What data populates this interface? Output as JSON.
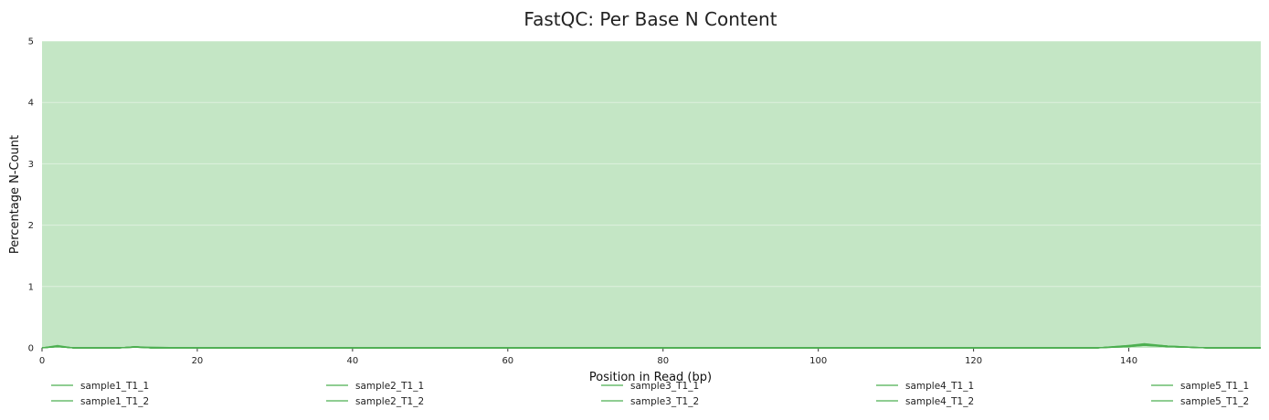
{
  "chart_data": {
    "type": "line",
    "title": "FastQC: Per Base N Content",
    "xlabel": "Position in Read (bp)",
    "ylabel": "Percentage N-Count",
    "xlim": [
      0,
      157
    ],
    "ylim": [
      0,
      5
    ],
    "xticks": [
      0,
      20,
      40,
      60,
      80,
      100,
      120,
      140
    ],
    "yticks": [
      0,
      1,
      2,
      3,
      4,
      5
    ],
    "background_band": {
      "from": 0,
      "to": 5,
      "color": "#c4e6c5"
    },
    "grid": true,
    "legend_position": "bottom",
    "line_color": "#4caf50",
    "series": [
      {
        "name": "sample1_T1_1",
        "x": [
          0,
          1,
          2,
          3,
          4,
          6,
          10,
          12,
          14,
          20,
          40,
          60,
          80,
          100,
          120,
          136,
          140,
          142,
          145,
          150,
          157
        ],
        "y": [
          0,
          0.02,
          0.04,
          0.02,
          0,
          0,
          0,
          0.02,
          0.01,
          0,
          0,
          0,
          0,
          0,
          0,
          0,
          0.04,
          0.06,
          0.03,
          0,
          0
        ]
      },
      {
        "name": "sample1_T1_2",
        "x": [
          0,
          1,
          2,
          3,
          4,
          6,
          10,
          12,
          14,
          20,
          40,
          60,
          80,
          100,
          120,
          136,
          140,
          142,
          145,
          150,
          157
        ],
        "y": [
          0,
          0.01,
          0.03,
          0.01,
          0,
          0,
          0,
          0.01,
          0.01,
          0,
          0,
          0,
          0,
          0,
          0,
          0,
          0.03,
          0.05,
          0.02,
          0,
          0
        ]
      },
      {
        "name": "sample2_T1_1",
        "x": [
          0,
          2,
          4,
          10,
          12,
          14,
          20,
          80,
          136,
          140,
          142,
          145,
          150,
          157
        ],
        "y": [
          0,
          0.02,
          0,
          0,
          0.02,
          0,
          0,
          0,
          0,
          0.03,
          0.05,
          0.02,
          0,
          0
        ]
      },
      {
        "name": "sample2_T1_2",
        "x": [
          0,
          2,
          4,
          10,
          12,
          14,
          20,
          80,
          136,
          140,
          142,
          145,
          150,
          157
        ],
        "y": [
          0,
          0.02,
          0,
          0,
          0.01,
          0,
          0,
          0,
          0,
          0.02,
          0.04,
          0.02,
          0,
          0
        ]
      },
      {
        "name": "sample3_T1_1",
        "x": [
          0,
          2,
          4,
          10,
          12,
          14,
          20,
          80,
          136,
          140,
          142,
          145,
          150,
          157
        ],
        "y": [
          0,
          0.03,
          0,
          0,
          0.02,
          0,
          0,
          0,
          0,
          0.03,
          0.06,
          0.03,
          0,
          0
        ]
      },
      {
        "name": "sample3_T1_2",
        "x": [
          0,
          2,
          4,
          10,
          12,
          14,
          20,
          80,
          136,
          140,
          142,
          145,
          150,
          157
        ],
        "y": [
          0,
          0.02,
          0,
          0,
          0.01,
          0,
          0,
          0,
          0,
          0.02,
          0.05,
          0.02,
          0,
          0
        ]
      },
      {
        "name": "sample4_T1_1",
        "x": [
          0,
          2,
          4,
          10,
          12,
          14,
          20,
          80,
          136,
          140,
          142,
          145,
          150,
          157
        ],
        "y": [
          0,
          0.03,
          0,
          0,
          0.02,
          0,
          0,
          0,
          0,
          0.04,
          0.07,
          0.03,
          0,
          0
        ]
      },
      {
        "name": "sample4_T1_2",
        "x": [
          0,
          2,
          4,
          10,
          12,
          14,
          20,
          80,
          136,
          140,
          142,
          145,
          150,
          157
        ],
        "y": [
          0,
          0.02,
          0,
          0,
          0.01,
          0,
          0,
          0,
          0,
          0.03,
          0.05,
          0.02,
          0,
          0
        ]
      },
      {
        "name": "sample5_T1_1",
        "x": [
          0,
          2,
          4,
          10,
          12,
          14,
          20,
          80,
          136,
          140,
          142,
          145,
          150,
          157
        ],
        "y": [
          0,
          0.03,
          0,
          0,
          0.02,
          0,
          0,
          0,
          0,
          0.03,
          0.06,
          0.02,
          0,
          0
        ]
      },
      {
        "name": "sample5_T1_2",
        "x": [
          0,
          2,
          4,
          10,
          12,
          14,
          20,
          80,
          136,
          140,
          142,
          145,
          150,
          157
        ],
        "y": [
          0,
          0.02,
          0,
          0,
          0.01,
          0,
          0,
          0,
          0,
          0.02,
          0.04,
          0.02,
          0,
          0
        ]
      }
    ]
  }
}
